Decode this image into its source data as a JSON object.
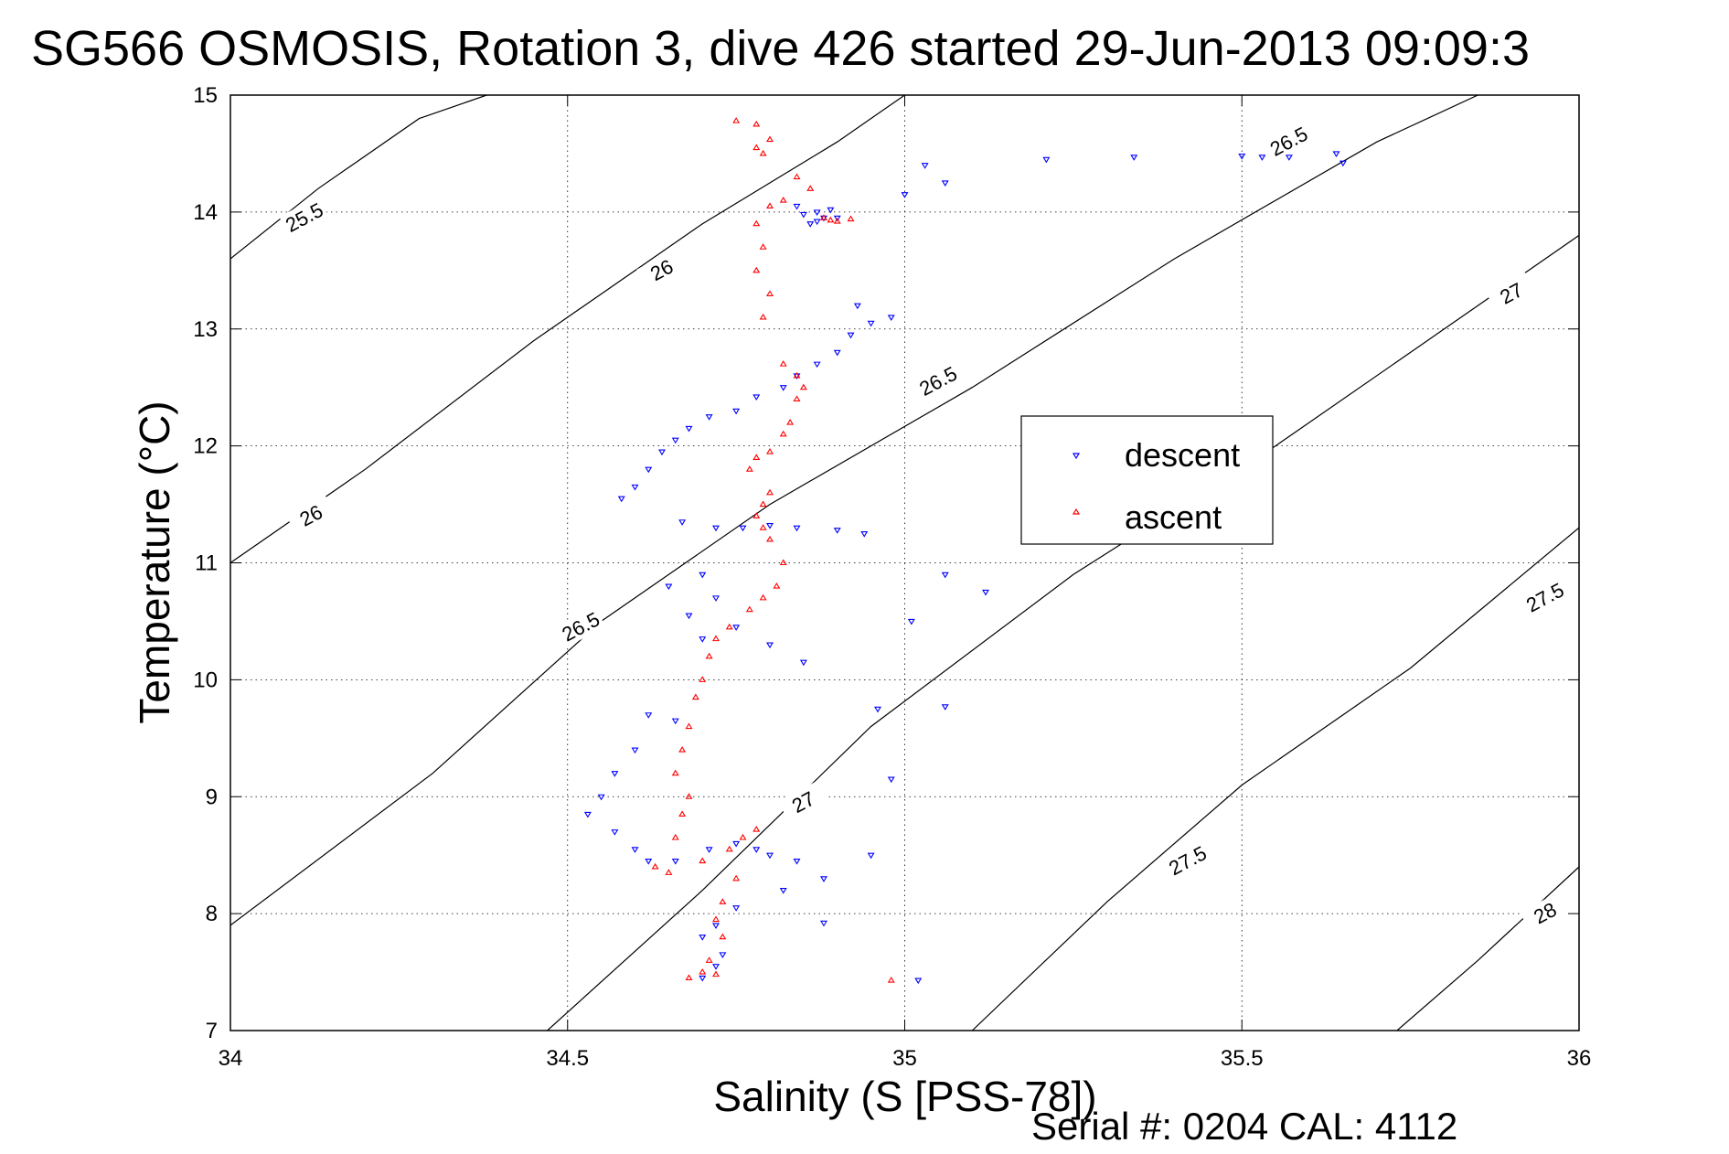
{
  "title": "SG566 OSMOSIS, Rotation 3, dive 426 started 29-Jun-2013 09:09:3",
  "footer": "Serial #: 0204  CAL: 4112",
  "colors": {
    "descent": "#0000ff",
    "ascent": "#ff0000",
    "contour": "#000000",
    "grid": "#000000"
  },
  "chart_data": {
    "type": "scatter",
    "xlabel": "Salinity (S [PSS-78])",
    "ylabel": "Temperature (°C)",
    "xlim": [
      34,
      36
    ],
    "ylim": [
      7,
      15
    ],
    "xticks": [
      34,
      34.5,
      35,
      35.5,
      36
    ],
    "xtick_labels": [
      "34",
      "34.5",
      "35",
      "35.5",
      "36"
    ],
    "yticks": [
      7,
      8,
      9,
      10,
      11,
      12,
      13,
      14,
      15
    ],
    "ytick_labels": [
      "7",
      "8",
      "9",
      "10",
      "11",
      "12",
      "13",
      "14",
      "15"
    ],
    "grid": true,
    "legend": {
      "placement": "inside-right",
      "entries": [
        "descent",
        "ascent"
      ]
    },
    "contours": [
      {
        "label": "25.5",
        "points": [
          [
            34.0,
            13.6
          ],
          [
            34.13,
            14.2
          ],
          [
            34.28,
            14.8
          ],
          [
            34.38,
            15.0
          ]
        ]
      },
      {
        "label": "26",
        "points": [
          [
            34.0,
            11.0
          ],
          [
            34.2,
            11.8
          ],
          [
            34.45,
            12.9
          ],
          [
            34.7,
            13.9
          ],
          [
            34.9,
            14.6
          ],
          [
            35.0,
            15.0
          ]
        ]
      },
      {
        "label": "26.5",
        "points": [
          [
            34.0,
            7.9
          ],
          [
            34.3,
            9.2
          ],
          [
            34.55,
            10.5
          ],
          [
            34.8,
            11.5
          ],
          [
            35.1,
            12.5
          ],
          [
            35.4,
            13.6
          ],
          [
            35.7,
            14.6
          ],
          [
            35.85,
            15.0
          ]
        ]
      },
      {
        "label": "27",
        "points": [
          [
            34.47,
            7.0
          ],
          [
            34.7,
            8.2
          ],
          [
            34.95,
            9.6
          ],
          [
            35.25,
            10.9
          ],
          [
            35.55,
            12.0
          ],
          [
            35.8,
            13.0
          ],
          [
            36.0,
            13.8
          ]
        ]
      },
      {
        "label": "27.5",
        "points": [
          [
            35.1,
            7.0
          ],
          [
            35.3,
            8.1
          ],
          [
            35.5,
            9.1
          ],
          [
            35.75,
            10.1
          ],
          [
            36.0,
            11.3
          ]
        ]
      },
      {
        "label": "28",
        "points": [
          [
            35.73,
            7.0
          ],
          [
            35.85,
            7.6
          ],
          [
            36.0,
            8.4
          ]
        ]
      }
    ],
    "contour_labels": [
      {
        "text": "25.5",
        "x": 34.11,
        "y": 13.95,
        "angle": -28
      },
      {
        "text": "26",
        "x": 34.64,
        "y": 13.5,
        "angle": -28
      },
      {
        "text": "26",
        "x": 34.12,
        "y": 11.4,
        "angle": -28
      },
      {
        "text": "26.5",
        "x": 35.57,
        "y": 14.6,
        "angle": -28
      },
      {
        "text": "26.5",
        "x": 35.05,
        "y": 12.55,
        "angle": -28
      },
      {
        "text": "26.5",
        "x": 34.52,
        "y": 10.45,
        "angle": -28
      },
      {
        "text": "27",
        "x": 35.9,
        "y": 13.3,
        "angle": -28
      },
      {
        "text": "27",
        "x": 34.85,
        "y": 8.95,
        "angle": -28
      },
      {
        "text": "27.5",
        "x": 35.95,
        "y": 10.7,
        "angle": -28
      },
      {
        "text": "27.5",
        "x": 35.42,
        "y": 8.45,
        "angle": -28
      },
      {
        "text": "28",
        "x": 35.95,
        "y": 8.0,
        "angle": -28
      }
    ],
    "series": [
      {
        "name": "descent",
        "marker": "triangle-down",
        "points": [
          [
            34.87,
            14.0
          ],
          [
            34.88,
            13.95
          ],
          [
            34.86,
            13.9
          ],
          [
            34.89,
            14.02
          ],
          [
            34.84,
            14.05
          ],
          [
            34.9,
            13.95
          ],
          [
            34.85,
            13.98
          ],
          [
            34.87,
            13.92
          ],
          [
            35.0,
            14.15
          ],
          [
            35.03,
            14.4
          ],
          [
            35.06,
            14.25
          ],
          [
            35.21,
            14.45
          ],
          [
            35.34,
            14.47
          ],
          [
            35.5,
            14.48
          ],
          [
            35.53,
            14.47
          ],
          [
            35.57,
            14.47
          ],
          [
            35.64,
            14.5
          ],
          [
            35.65,
            14.42
          ],
          [
            34.93,
            13.2
          ],
          [
            34.95,
            13.05
          ],
          [
            34.98,
            13.1
          ],
          [
            34.92,
            12.95
          ],
          [
            34.9,
            12.8
          ],
          [
            34.87,
            12.7
          ],
          [
            34.84,
            12.6
          ],
          [
            34.82,
            12.5
          ],
          [
            34.78,
            12.42
          ],
          [
            34.75,
            12.3
          ],
          [
            34.71,
            12.25
          ],
          [
            34.68,
            12.15
          ],
          [
            34.66,
            12.05
          ],
          [
            34.64,
            11.95
          ],
          [
            34.62,
            11.8
          ],
          [
            34.6,
            11.65
          ],
          [
            34.58,
            11.55
          ],
          [
            34.67,
            11.35
          ],
          [
            34.72,
            11.3
          ],
          [
            34.76,
            11.3
          ],
          [
            34.8,
            11.32
          ],
          [
            34.84,
            11.3
          ],
          [
            34.9,
            11.28
          ],
          [
            34.94,
            11.25
          ],
          [
            34.7,
            10.9
          ],
          [
            34.65,
            10.8
          ],
          [
            34.72,
            10.7
          ],
          [
            34.68,
            10.55
          ],
          [
            34.75,
            10.45
          ],
          [
            34.7,
            10.35
          ],
          [
            34.8,
            10.3
          ],
          [
            34.85,
            10.15
          ],
          [
            35.06,
            10.9
          ],
          [
            35.12,
            10.75
          ],
          [
            35.01,
            10.5
          ],
          [
            34.96,
            9.75
          ],
          [
            35.06,
            9.77
          ],
          [
            34.62,
            9.7
          ],
          [
            34.66,
            9.65
          ],
          [
            34.6,
            9.4
          ],
          [
            34.57,
            9.2
          ],
          [
            34.55,
            9.0
          ],
          [
            34.53,
            8.85
          ],
          [
            34.57,
            8.7
          ],
          [
            34.6,
            8.55
          ],
          [
            34.62,
            8.45
          ],
          [
            34.66,
            8.45
          ],
          [
            34.71,
            8.55
          ],
          [
            34.75,
            8.6
          ],
          [
            34.78,
            8.55
          ],
          [
            34.8,
            8.5
          ],
          [
            34.84,
            8.45
          ],
          [
            34.88,
            8.3
          ],
          [
            34.82,
            8.2
          ],
          [
            34.75,
            8.05
          ],
          [
            34.72,
            7.9
          ],
          [
            34.7,
            7.8
          ],
          [
            34.73,
            7.65
          ],
          [
            34.72,
            7.55
          ],
          [
            34.7,
            7.45
          ],
          [
            34.88,
            7.92
          ],
          [
            34.95,
            8.5
          ],
          [
            34.98,
            9.15
          ],
          [
            35.02,
            7.43
          ]
        ]
      },
      {
        "name": "ascent",
        "marker": "triangle-up",
        "points": [
          [
            34.75,
            14.78
          ],
          [
            34.78,
            14.75
          ],
          [
            34.8,
            14.62
          ],
          [
            34.79,
            14.5
          ],
          [
            34.78,
            14.55
          ],
          [
            34.84,
            14.3
          ],
          [
            34.86,
            14.2
          ],
          [
            34.82,
            14.1
          ],
          [
            34.8,
            14.05
          ],
          [
            34.78,
            13.9
          ],
          [
            34.89,
            13.93
          ],
          [
            34.9,
            13.92
          ],
          [
            34.92,
            13.94
          ],
          [
            34.88,
            13.95
          ],
          [
            34.79,
            13.7
          ],
          [
            34.78,
            13.5
          ],
          [
            34.8,
            13.3
          ],
          [
            34.79,
            13.1
          ],
          [
            34.82,
            12.7
          ],
          [
            34.84,
            12.6
          ],
          [
            34.85,
            12.5
          ],
          [
            34.84,
            12.4
          ],
          [
            34.83,
            12.2
          ],
          [
            34.82,
            12.1
          ],
          [
            34.8,
            11.95
          ],
          [
            34.78,
            11.9
          ],
          [
            34.77,
            11.8
          ],
          [
            34.8,
            11.6
          ],
          [
            34.79,
            11.5
          ],
          [
            34.78,
            11.4
          ],
          [
            34.79,
            11.3
          ],
          [
            34.8,
            11.2
          ],
          [
            34.82,
            11.0
          ],
          [
            34.81,
            10.8
          ],
          [
            34.79,
            10.7
          ],
          [
            34.77,
            10.6
          ],
          [
            34.74,
            10.45
          ],
          [
            34.72,
            10.35
          ],
          [
            34.71,
            10.2
          ],
          [
            34.7,
            10.0
          ],
          [
            34.69,
            9.85
          ],
          [
            34.68,
            9.6
          ],
          [
            34.67,
            9.4
          ],
          [
            34.66,
            9.2
          ],
          [
            34.68,
            9.0
          ],
          [
            34.67,
            8.85
          ],
          [
            34.66,
            8.65
          ],
          [
            34.63,
            8.4
          ],
          [
            34.65,
            8.35
          ],
          [
            34.7,
            8.45
          ],
          [
            34.74,
            8.55
          ],
          [
            34.76,
            8.65
          ],
          [
            34.78,
            8.72
          ],
          [
            34.75,
            8.3
          ],
          [
            34.73,
            8.1
          ],
          [
            34.72,
            7.95
          ],
          [
            34.73,
            7.8
          ],
          [
            34.71,
            7.6
          ],
          [
            34.7,
            7.5
          ],
          [
            34.68,
            7.45
          ],
          [
            34.72,
            7.48
          ],
          [
            34.98,
            7.43
          ]
        ]
      }
    ]
  }
}
